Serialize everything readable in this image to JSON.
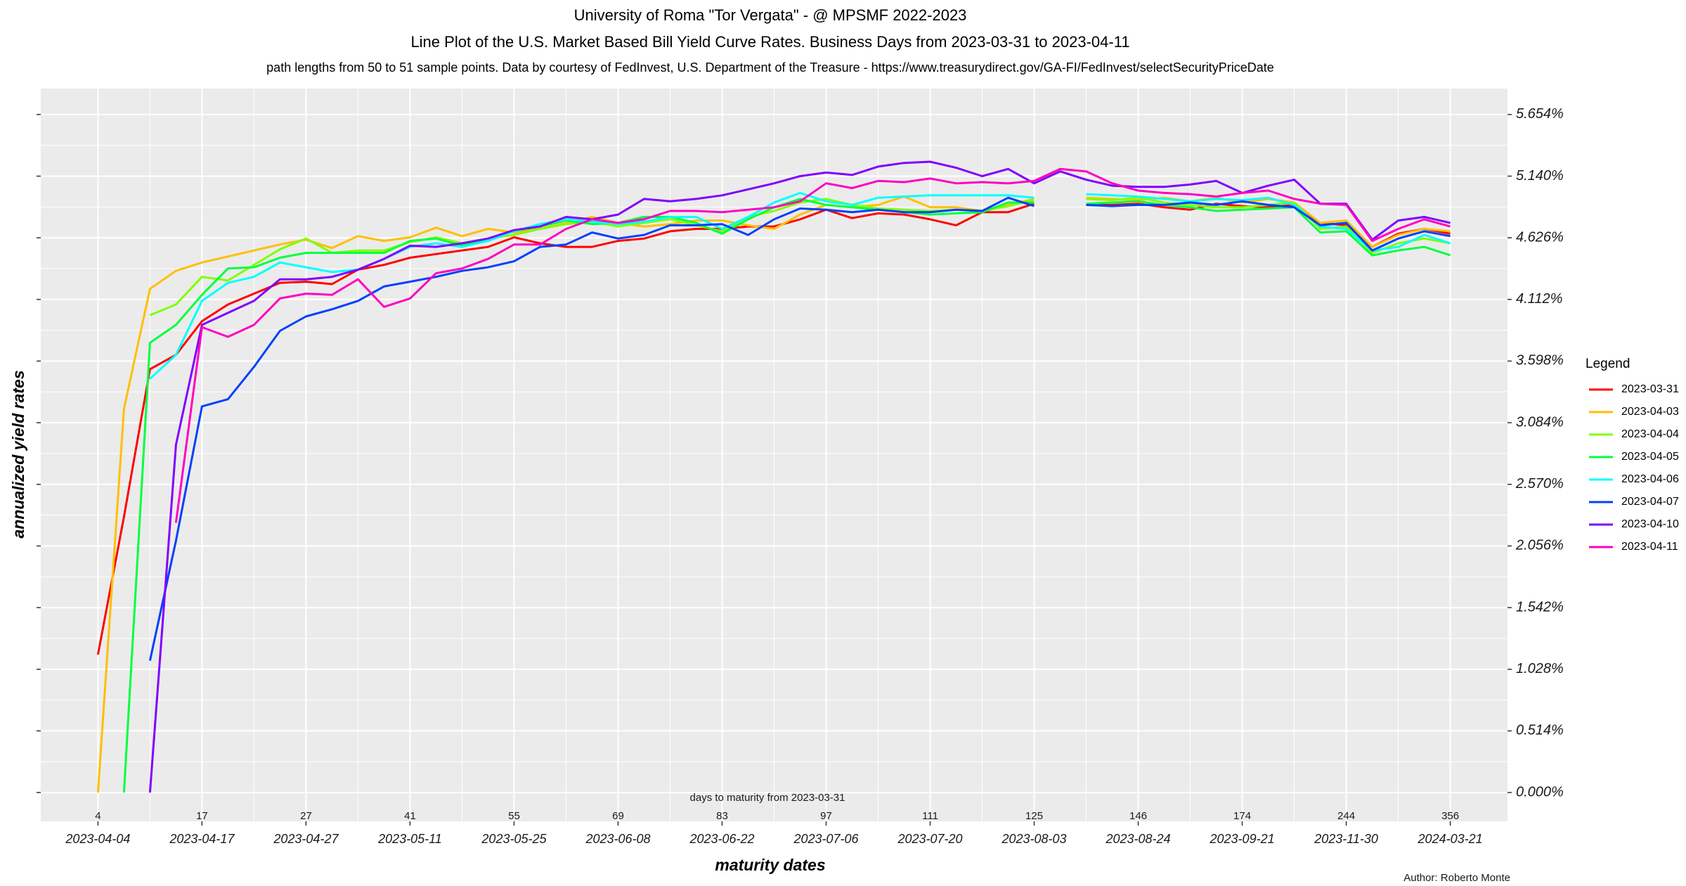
{
  "chart_data": {
    "type": "line",
    "title": "University of Roma \"Tor Vergata\" - @ MPSMF 2022-2023",
    "subtitle": "Line Plot of the U.S. Market Based Bill Yield Curve Rates. Business Days from 2023-03-31 to 2023-04-11",
    "caption_top": "path lengths from 50 to 51 sample points. Data by courtesy of  FedInvest, U.S. Department of the Treasure  -  https://www.treasurydirect.gov/GA-FI/FedInvest/selectSecurityPriceDate",
    "x_label": "maturity dates",
    "y_label": "annualized yield rates",
    "secondary_x_label": "days to maturity from 2023-03-31",
    "legend_title": "Legend",
    "author": "Author: Roberto Monte",
    "legend_position": "right",
    "grid": true,
    "categories": [
      "2023-04-04",
      null,
      null,
      null,
      "2023-04-17",
      null,
      null,
      null,
      "2023-04-27",
      null,
      null,
      null,
      "2023-05-11",
      null,
      null,
      null,
      "2023-05-25",
      null,
      null,
      null,
      "2023-06-08",
      null,
      null,
      null,
      "2023-06-22",
      null,
      null,
      null,
      "2023-07-06",
      null,
      null,
      null,
      "2023-07-20",
      null,
      null,
      null,
      "2023-08-03",
      null,
      null,
      null,
      "2023-08-24",
      null,
      null,
      null,
      "2023-09-21",
      null,
      null,
      null,
      "2023-11-30",
      null,
      null,
      null,
      "2024-03-21"
    ],
    "days_to_maturity": [
      4,
      null,
      null,
      null,
      17,
      null,
      null,
      null,
      27,
      null,
      null,
      null,
      41,
      null,
      null,
      null,
      55,
      null,
      null,
      null,
      69,
      null,
      null,
      null,
      83,
      null,
      null,
      null,
      97,
      null,
      null,
      null,
      111,
      null,
      null,
      null,
      125,
      null,
      null,
      null,
      146,
      null,
      null,
      null,
      174,
      null,
      null,
      null,
      244,
      null,
      null,
      null,
      356
    ],
    "ylim": [
      -0.24,
      5.87
    ],
    "yticks": [
      {
        "value": 0,
        "label": "0.000%"
      },
      {
        "value": 0.514,
        "label": "0.514%"
      },
      {
        "value": 1.028,
        "label": "1.028%"
      },
      {
        "value": 1.542,
        "label": "1.542%"
      },
      {
        "value": 2.056,
        "label": "2.056%"
      },
      {
        "value": 2.57,
        "label": "2.570%"
      },
      {
        "value": 3.084,
        "label": "3.084%"
      },
      {
        "value": 3.598,
        "label": "3.598%"
      },
      {
        "value": 4.112,
        "label": "4.112%"
      },
      {
        "value": 4.626,
        "label": "4.626%"
      },
      {
        "value": 5.14,
        "label": "5.140%"
      },
      {
        "value": 5.654,
        "label": "5.654%"
      }
    ],
    "series": [
      {
        "name": "2023-03-31",
        "color": "#FF0000",
        "values": [
          1.15,
          2.3,
          3.53,
          3.65,
          3.93,
          4.07,
          4.16,
          4.25,
          4.26,
          4.24,
          4.36,
          4.4,
          4.46,
          4.49,
          4.52,
          4.55,
          4.63,
          4.58,
          4.55,
          4.55,
          4.6,
          4.62,
          4.68,
          4.7,
          4.7,
          4.72,
          4.72,
          4.78,
          4.86,
          4.79,
          4.83,
          4.82,
          4.78,
          4.73,
          4.84,
          4.84,
          4.91,
          null,
          4.9,
          4.9,
          4.91,
          4.88,
          4.86,
          4.91,
          4.89,
          4.88,
          4.9,
          4.75,
          4.73,
          4.55,
          4.66,
          4.7,
          4.66
        ]
      },
      {
        "name": "2023-04-03",
        "color": "#FFBF00",
        "values": [
          0.0,
          3.2,
          4.2,
          4.35,
          4.42,
          4.47,
          4.52,
          4.57,
          4.61,
          4.54,
          4.64,
          4.6,
          4.63,
          4.71,
          4.64,
          4.7,
          4.67,
          4.7,
          4.75,
          4.8,
          4.75,
          4.72,
          4.74,
          4.77,
          4.77,
          4.73,
          4.7,
          4.82,
          4.9,
          4.88,
          4.9,
          4.97,
          4.88,
          4.88,
          4.85,
          4.9,
          4.95,
          null,
          4.96,
          4.95,
          4.94,
          4.96,
          4.93,
          4.96,
          4.92,
          4.95,
          4.92,
          4.75,
          4.77,
          4.55,
          4.65,
          4.7,
          4.68
        ]
      },
      {
        "name": "2023-04-04",
        "color": "#80FF00",
        "values": [
          null,
          null,
          3.98,
          4.07,
          4.3,
          4.27,
          4.4,
          4.53,
          4.62,
          4.5,
          4.52,
          4.52,
          4.59,
          4.63,
          4.58,
          4.62,
          4.65,
          4.7,
          4.74,
          4.76,
          4.72,
          4.75,
          4.78,
          4.73,
          4.68,
          4.8,
          4.85,
          4.92,
          4.95,
          4.9,
          4.87,
          4.86,
          4.85,
          4.86,
          4.85,
          4.89,
          4.94,
          null,
          4.95,
          4.94,
          4.96,
          4.92,
          4.9,
          4.88,
          4.88,
          4.9,
          4.92,
          4.7,
          4.72,
          4.5,
          4.58,
          4.62,
          4.58
        ]
      },
      {
        "name": "2023-04-05",
        "color": "#00FF40",
        "values": [
          null,
          0.0,
          3.75,
          3.9,
          4.15,
          4.37,
          4.38,
          4.46,
          4.5,
          4.5,
          4.5,
          4.5,
          4.6,
          4.62,
          4.56,
          4.62,
          4.68,
          4.72,
          4.77,
          4.74,
          4.75,
          4.8,
          4.8,
          4.75,
          4.66,
          4.78,
          4.88,
          4.95,
          4.9,
          4.88,
          4.86,
          4.84,
          4.82,
          4.83,
          4.84,
          4.92,
          4.92,
          null,
          4.91,
          4.92,
          4.93,
          4.9,
          4.88,
          4.85,
          4.86,
          4.87,
          4.88,
          4.67,
          4.68,
          4.48,
          4.52,
          4.55,
          4.48
        ]
      },
      {
        "name": "2023-04-06",
        "color": "#00FFFF",
        "values": [
          null,
          null,
          3.45,
          3.65,
          4.1,
          4.25,
          4.3,
          4.42,
          4.38,
          4.34,
          4.36,
          4.45,
          4.55,
          4.58,
          4.55,
          4.6,
          4.68,
          4.74,
          4.78,
          4.76,
          4.74,
          4.76,
          4.8,
          4.8,
          4.7,
          4.8,
          4.92,
          5.0,
          4.93,
          4.9,
          4.96,
          4.97,
          4.98,
          4.98,
          4.98,
          4.98,
          4.96,
          null,
          4.99,
          4.98,
          4.97,
          4.95,
          4.93,
          4.95,
          4.94,
          4.96,
          4.9,
          4.72,
          4.7,
          4.52,
          4.55,
          4.65,
          4.58
        ]
      },
      {
        "name": "2023-04-07",
        "color": "#0040FF",
        "values": [
          null,
          null,
          1.1,
          2.1,
          3.22,
          3.28,
          3.55,
          3.85,
          3.97,
          4.03,
          4.1,
          4.22,
          4.26,
          4.3,
          4.35,
          4.38,
          4.43,
          4.55,
          4.57,
          4.67,
          4.62,
          4.65,
          4.73,
          4.73,
          4.74,
          4.65,
          4.78,
          4.87,
          4.86,
          4.84,
          4.86,
          4.84,
          4.84,
          4.86,
          4.85,
          4.96,
          4.89,
          null,
          4.9,
          4.89,
          4.9,
          4.9,
          4.92,
          4.9,
          4.93,
          4.9,
          4.88,
          4.73,
          4.75,
          4.52,
          4.62,
          4.68,
          4.64
        ]
      },
      {
        "name": "2023-04-10",
        "color": "#8000FF",
        "values": [
          null,
          null,
          0.0,
          2.9,
          3.9,
          4.0,
          4.1,
          4.28,
          4.28,
          4.3,
          4.36,
          4.45,
          4.56,
          4.55,
          4.58,
          4.62,
          4.69,
          4.72,
          4.8,
          4.78,
          4.82,
          4.95,
          4.93,
          4.95,
          4.98,
          5.03,
          5.08,
          5.14,
          5.17,
          5.15,
          5.22,
          5.25,
          5.26,
          5.21,
          5.14,
          5.2,
          5.08,
          5.18,
          5.11,
          5.06,
          5.05,
          5.05,
          5.07,
          5.1,
          5.0,
          5.06,
          5.11,
          4.91,
          4.91,
          4.61,
          4.77,
          4.8,
          4.75
        ]
      },
      {
        "name": "2023-04-11",
        "color": "#FF00BF",
        "values": [
          null,
          null,
          null,
          2.25,
          3.88,
          3.8,
          3.9,
          4.12,
          4.16,
          4.15,
          4.28,
          4.05,
          4.12,
          4.33,
          4.37,
          4.45,
          4.57,
          4.57,
          4.7,
          4.78,
          4.75,
          4.78,
          4.85,
          4.85,
          4.84,
          4.86,
          4.88,
          4.93,
          5.08,
          5.04,
          5.1,
          5.09,
          5.12,
          5.08,
          5.09,
          5.08,
          5.1,
          5.2,
          5.18,
          5.08,
          5.02,
          5.0,
          4.99,
          4.97,
          5.0,
          5.02,
          4.95,
          4.91,
          4.9,
          4.6,
          4.7,
          4.78,
          4.72
        ]
      }
    ]
  }
}
